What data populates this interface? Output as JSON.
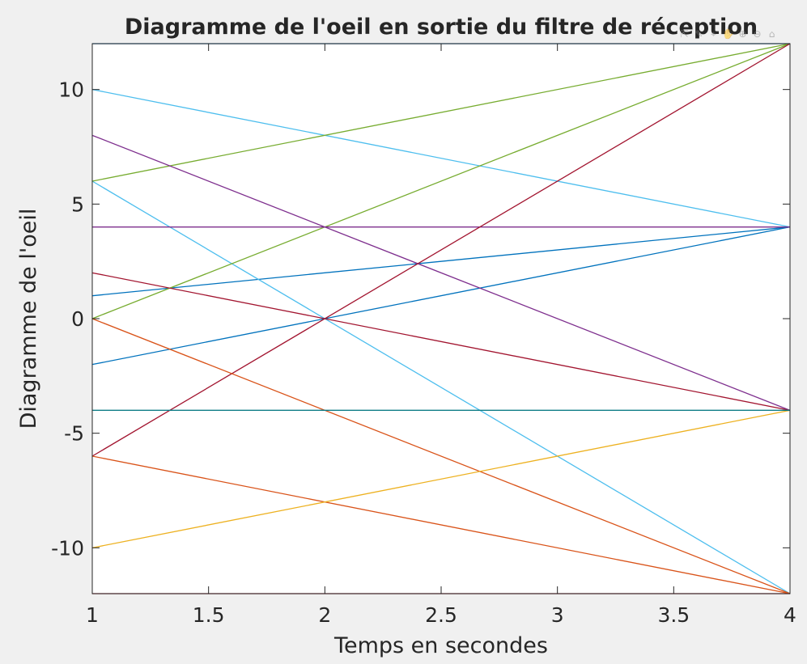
{
  "toolbar": {
    "icons": [
      "export-icon",
      "brush-icon",
      "datatip-icon",
      "pan-icon",
      "zoom-in-icon",
      "zoom-out-icon",
      "home-icon"
    ],
    "glyphs": [
      "⇱",
      "✎",
      "⌖",
      "✋",
      "⊕",
      "⊖",
      "⌂"
    ]
  },
  "chart_data": {
    "type": "line",
    "title": "Diagramme de l'oeil en sortie du filtre de réception",
    "xlabel": "Temps en secondes",
    "ylabel": "Diagramme de l'oeil",
    "xlim": [
      1,
      4
    ],
    "ylim": [
      -12,
      12
    ],
    "xticks": [
      1,
      1.5,
      2,
      2.5,
      3,
      3.5,
      4
    ],
    "xtick_labels": [
      "1",
      "1.5",
      "2",
      "2.5",
      "3",
      "3.5",
      "4"
    ],
    "yticks": [
      -10,
      -5,
      0,
      5,
      10
    ],
    "ytick_labels": [
      "-10",
      "-5",
      "0",
      "5",
      "10"
    ],
    "grid": false,
    "series": [
      {
        "color": "#0072BD",
        "x": [
          1,
          4
        ],
        "y": [
          12,
          12
        ]
      },
      {
        "color": "#0072BD",
        "x": [
          1,
          4
        ],
        "y": [
          1,
          4
        ]
      },
      {
        "color": "#0072BD",
        "x": [
          1,
          4
        ],
        "y": [
          -2,
          4
        ]
      },
      {
        "color": "#4DBEEE",
        "x": [
          1,
          4
        ],
        "y": [
          10,
          4
        ]
      },
      {
        "color": "#4DBEEE",
        "x": [
          1,
          4
        ],
        "y": [
          6,
          -12
        ]
      },
      {
        "color": "#77AC30",
        "x": [
          1,
          4
        ],
        "y": [
          6,
          12
        ]
      },
      {
        "color": "#77AC30",
        "x": [
          1,
          4
        ],
        "y": [
          0,
          12
        ]
      },
      {
        "color": "#7E2F8E",
        "x": [
          1,
          4
        ],
        "y": [
          8,
          -4
        ]
      },
      {
        "color": "#7E2F8E",
        "x": [
          1,
          4
        ],
        "y": [
          4,
          4
        ]
      },
      {
        "color": "#A2142F",
        "x": [
          1,
          4
        ],
        "y": [
          -6,
          12
        ]
      },
      {
        "color": "#A2142F",
        "x": [
          1,
          4
        ],
        "y": [
          2,
          -4
        ]
      },
      {
        "color": "#A2142F",
        "x": [
          1,
          4
        ],
        "y": [
          -12,
          -12
        ]
      },
      {
        "color": "#D95319",
        "x": [
          1,
          4
        ],
        "y": [
          0,
          -12
        ]
      },
      {
        "color": "#D95319",
        "x": [
          1,
          4
        ],
        "y": [
          -6,
          -12
        ]
      },
      {
        "color": "#EDB120",
        "x": [
          1,
          4
        ],
        "y": [
          -10,
          -4
        ]
      },
      {
        "color": "#0E7C86",
        "x": [
          1,
          4
        ],
        "y": [
          -4,
          -4
        ]
      }
    ]
  }
}
